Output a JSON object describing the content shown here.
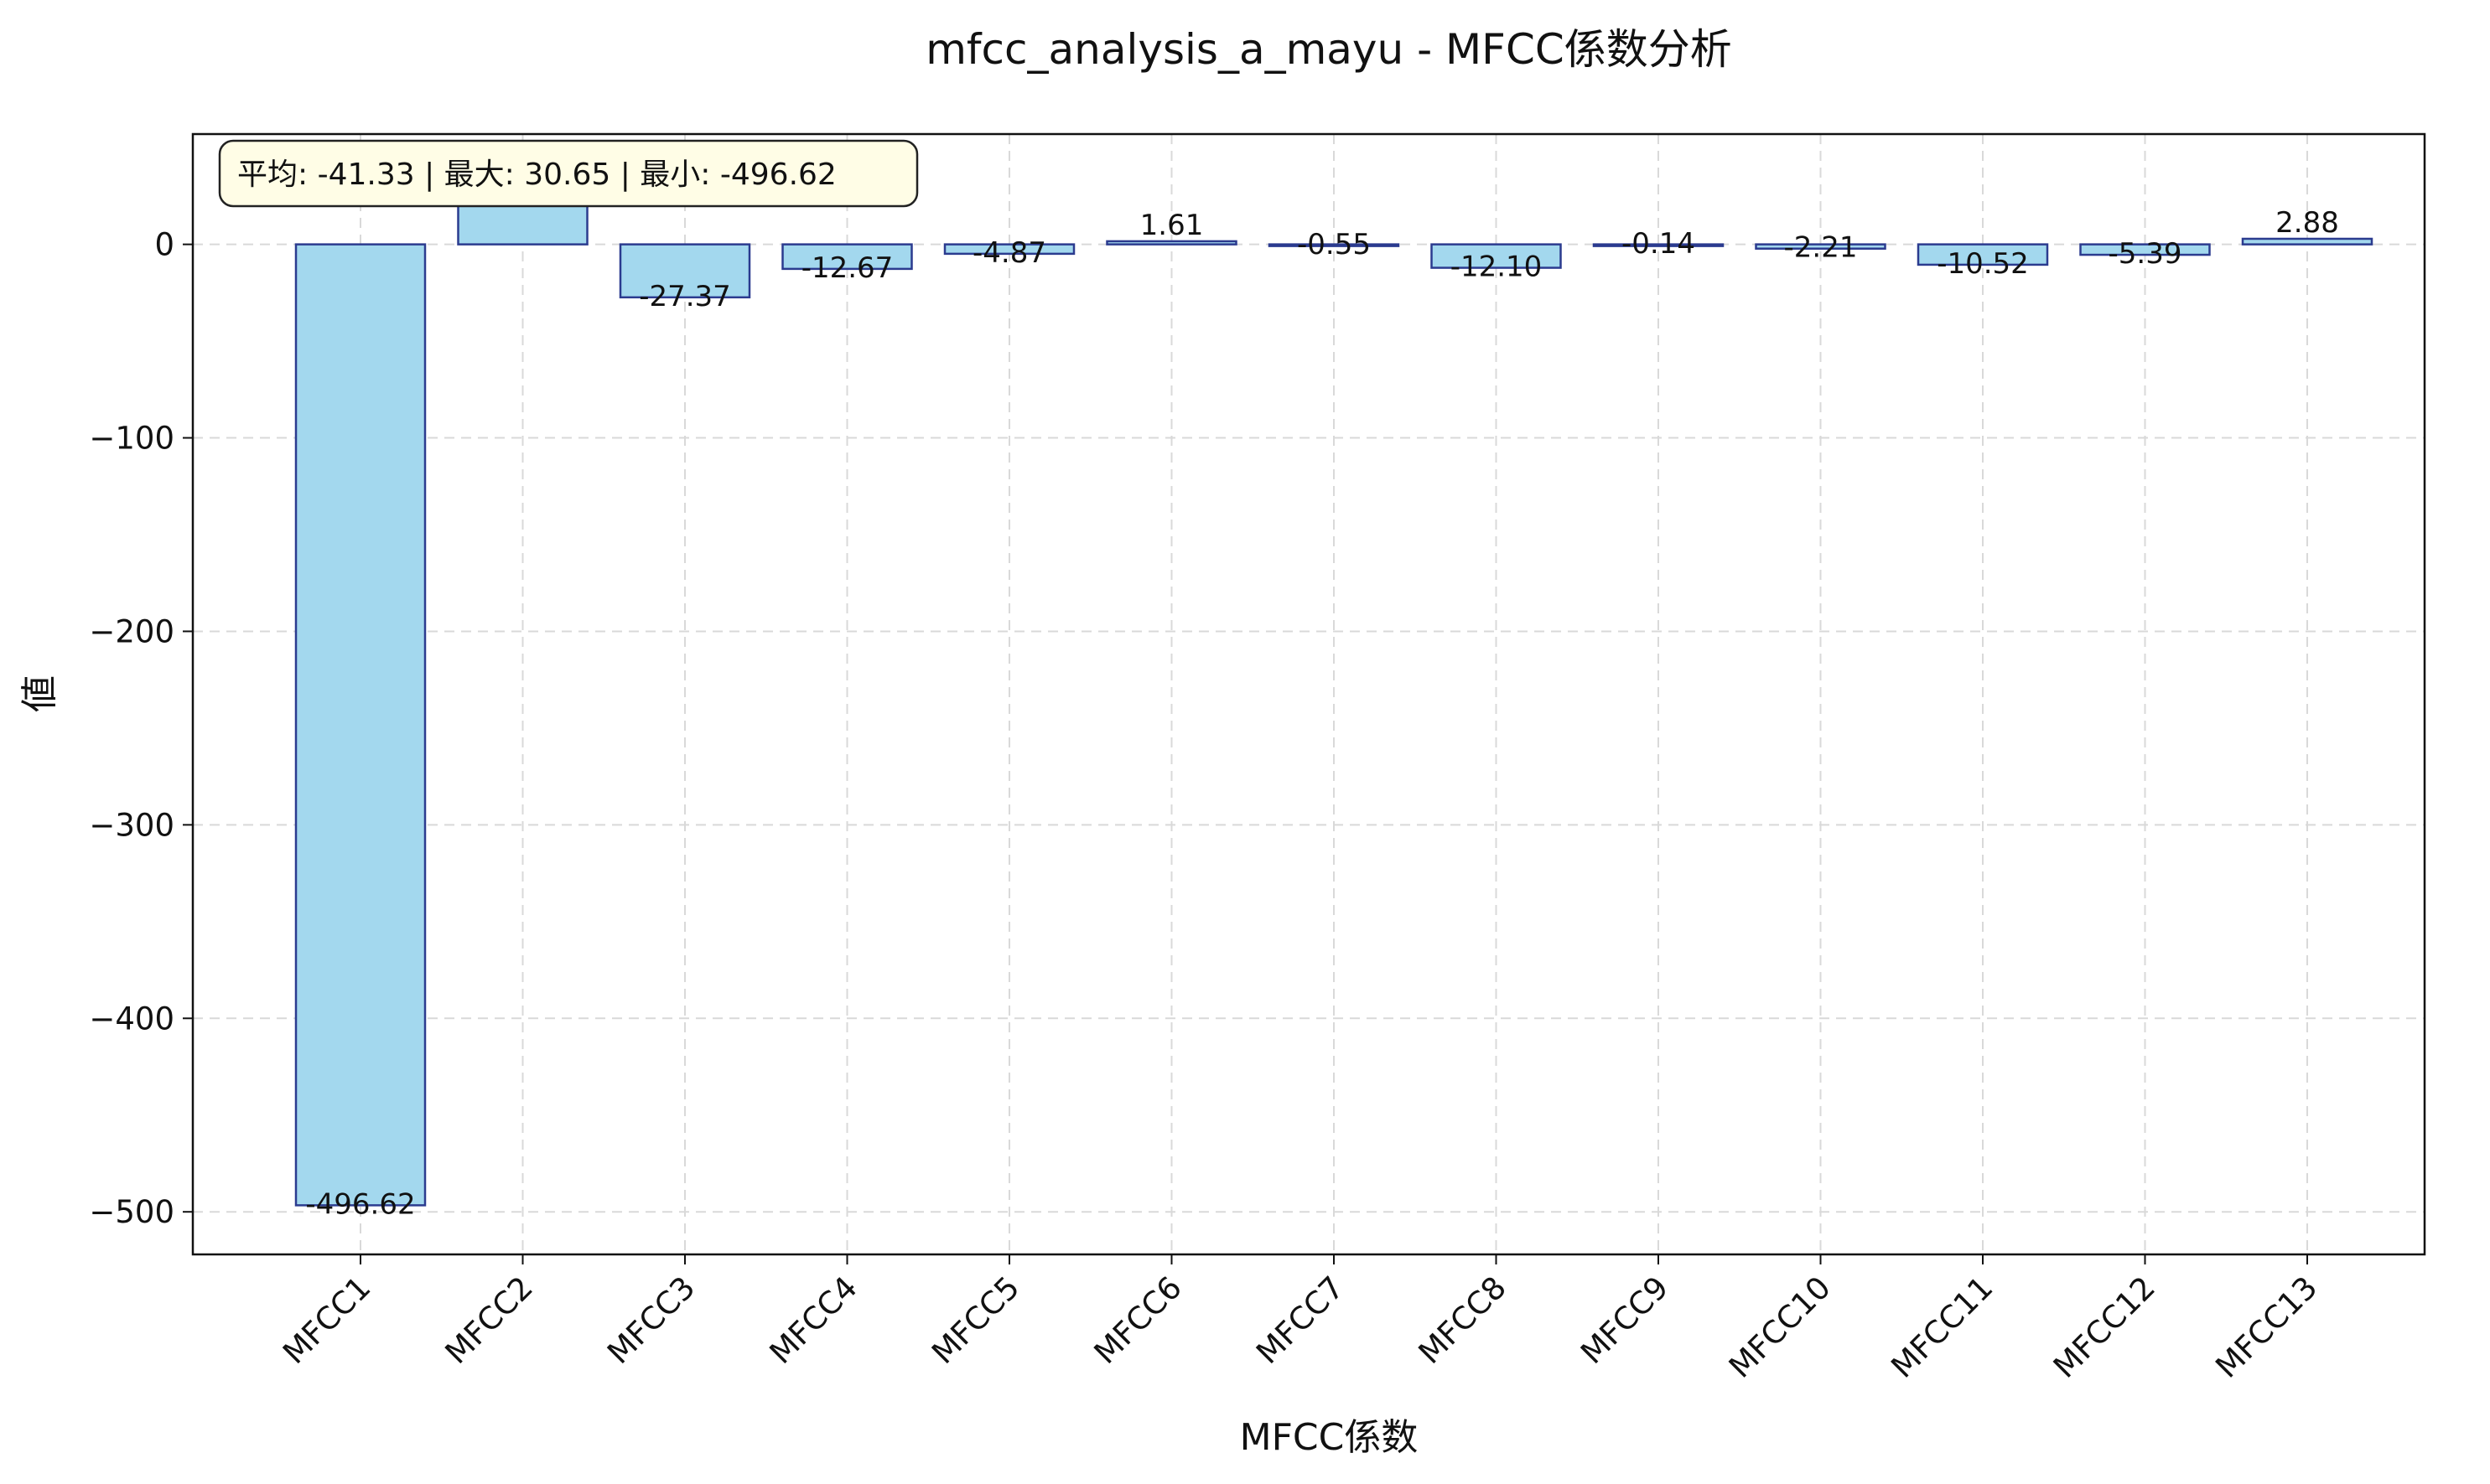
{
  "chart_data": {
    "type": "bar",
    "title": "mfcc_analysis_a_mayu - MFCC係数分析",
    "xlabel": "MFCC係数",
    "ylabel": "値",
    "categories": [
      "MFCC1",
      "MFCC2",
      "MFCC3",
      "MFCC4",
      "MFCC5",
      "MFCC6",
      "MFCC7",
      "MFCC8",
      "MFCC9",
      "MFCC10",
      "MFCC11",
      "MFCC12",
      "MFCC13"
    ],
    "values": [
      -496.62,
      30.65,
      -27.37,
      -12.67,
      -4.87,
      1.61,
      -0.55,
      -12.1,
      -0.14,
      -2.21,
      -10.52,
      -5.39,
      2.88
    ],
    "value_labels": [
      "-496.62",
      "30.65",
      "-27.37",
      "-12.67",
      "-4.87",
      "1.61",
      "-0.55",
      "-12.10",
      "-0.14",
      "-2.21",
      "-10.52",
      "-5.39",
      "2.88"
    ],
    "yticks": [
      0,
      -100,
      -200,
      -300,
      -400,
      -500
    ],
    "ytick_labels": [
      "0",
      "−100",
      "−200",
      "−300",
      "−400",
      "−500"
    ],
    "ylim": [
      -522,
      57
    ],
    "grid": true,
    "bar_fill": "#a3d8ee",
    "bar_edge": "#2b3b8f",
    "stats_box": {
      "text": "平均: -41.33 | 最大: 30.65 | 最小: -496.62",
      "fill": "#fffde6",
      "placement": "top-left"
    }
  }
}
